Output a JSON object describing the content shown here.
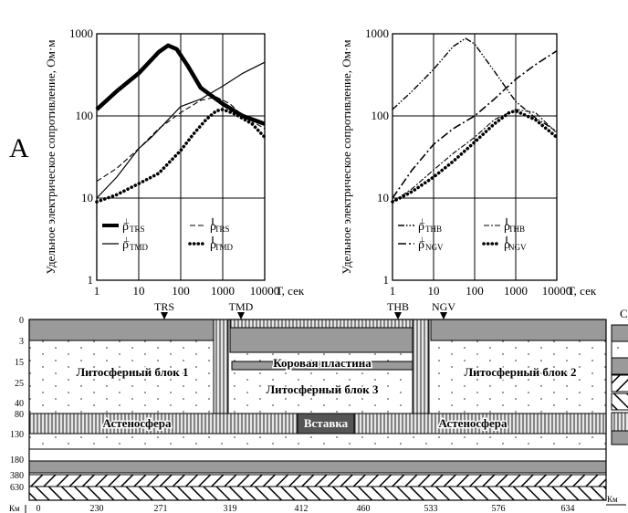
{
  "panel_label": "А",
  "chart_data": [
    {
      "type": "line",
      "xlabel": "Т, сек",
      "ylabel": "Удельное электрическое сопротивление, Ом·м",
      "xscale": "log",
      "yscale": "log",
      "xlim": [
        1,
        10000
      ],
      "ylim": [
        1,
        1000
      ],
      "x_ticks": [
        "1",
        "10",
        "100",
        "1000",
        "10000"
      ],
      "y_ticks": [
        "1",
        "10",
        "100",
        "1000"
      ],
      "grid": true,
      "legend": [
        {
          "base": "ρ",
          "sup": "⊥",
          "sub": "TRS",
          "style": "thick"
        },
        {
          "base": "ρ",
          "sup": "∥",
          "sub": "TRS",
          "style": "dash"
        },
        {
          "base": "ρ",
          "sup": "⊥",
          "sub": "TMD",
          "style": "thin"
        },
        {
          "base": "ρ",
          "sup": "∥",
          "sub": "TMD",
          "style": "dots"
        }
      ],
      "series": [
        {
          "x": [
            1,
            3,
            10,
            30,
            50,
            80,
            150,
            300,
            1000,
            3000,
            10000
          ],
          "values": [
            120,
            200,
            330,
            600,
            720,
            650,
            400,
            220,
            140,
            100,
            80
          ]
        },
        {
          "x": [
            1,
            3,
            10,
            30,
            100,
            300,
            700,
            1500,
            3000,
            10000
          ],
          "values": [
            16,
            23,
            40,
            70,
            110,
            155,
            170,
            140,
            100,
            70
          ]
        },
        {
          "x": [
            1,
            3,
            10,
            20,
            50,
            100,
            300,
            1000,
            3000,
            10000
          ],
          "values": [
            10,
            18,
            40,
            55,
            90,
            130,
            160,
            230,
            330,
            450
          ]
        },
        {
          "x": [
            1,
            3,
            10,
            30,
            100,
            200,
            400,
            700,
            1000,
            2000,
            5000,
            10000
          ],
          "values": [
            9,
            11,
            15,
            20,
            38,
            60,
            90,
            115,
            120,
            105,
            80,
            55
          ]
        }
      ]
    },
    {
      "type": "line",
      "xlabel": "Т, сек",
      "ylabel": "Удельное электрическое сопротивление, Ом·м",
      "xscale": "log",
      "yscale": "log",
      "xlim": [
        1,
        10000
      ],
      "ylim": [
        1,
        1000
      ],
      "x_ticks": [
        "1",
        "10",
        "100",
        "1000",
        "10000"
      ],
      "y_ticks": [
        "1",
        "10",
        "100",
        "1000"
      ],
      "grid": true,
      "legend": [
        {
          "base": "ρ",
          "sup": "⊥",
          "sub": "THB",
          "style": "dashdotdot"
        },
        {
          "base": "ρ",
          "sup": "∥",
          "sub": "THB",
          "style": "dashdot-light"
        },
        {
          "base": "ρ",
          "sup": "⊥",
          "sub": "NGV",
          "style": "dashdot"
        },
        {
          "base": "ρ",
          "sup": "∥",
          "sub": "NGV",
          "style": "dots"
        }
      ],
      "series": [
        {
          "x": [
            1,
            3,
            10,
            30,
            60,
            100,
            300,
            1000,
            3000,
            10000
          ],
          "values": [
            120,
            200,
            370,
            700,
            880,
            750,
            350,
            150,
            95,
            65
          ]
        },
        {
          "x": [
            1,
            3,
            10,
            30,
            100,
            300,
            1000,
            3000,
            10000
          ],
          "values": [
            9,
            13,
            22,
            35,
            55,
            90,
            120,
            110,
            62
          ]
        },
        {
          "x": [
            1,
            3,
            10,
            30,
            100,
            300,
            1000,
            3000,
            10000
          ],
          "values": [
            10,
            22,
            45,
            70,
            100,
            160,
            280,
            420,
            620
          ]
        },
        {
          "x": [
            1,
            3,
            10,
            30,
            100,
            300,
            700,
            1000,
            3000,
            10000
          ],
          "values": [
            9,
            12,
            18,
            28,
            48,
            80,
            110,
            115,
            90,
            55
          ]
        }
      ]
    }
  ],
  "stations": [
    "TRS",
    "TMD",
    "THB",
    "NGV"
  ],
  "section": {
    "depth_unit": "Км",
    "depths": [
      "0",
      "3",
      "15",
      "25",
      "40",
      "80",
      "130",
      "180",
      "380",
      "630"
    ],
    "distance_unit": "Км",
    "distances": [
      "0",
      "230",
      "271",
      "319",
      "412",
      "460",
      "533",
      "576",
      "634"
    ],
    "labels": {
      "block1": "Литосферный блок 1",
      "block2": "Литосферный блок 2",
      "block3": "Литосферный блок 3",
      "crust_plate": "Коровая пластина",
      "astheno_left": "Астеносфера",
      "astheno_right": "Астеносфера",
      "insert": "Вставка"
    }
  },
  "legend_column": {
    "header": "С"
  },
  "colors": {
    "gray": "#9a9a9a",
    "dark": "#555555",
    "stripe": "#dcdcdc"
  }
}
